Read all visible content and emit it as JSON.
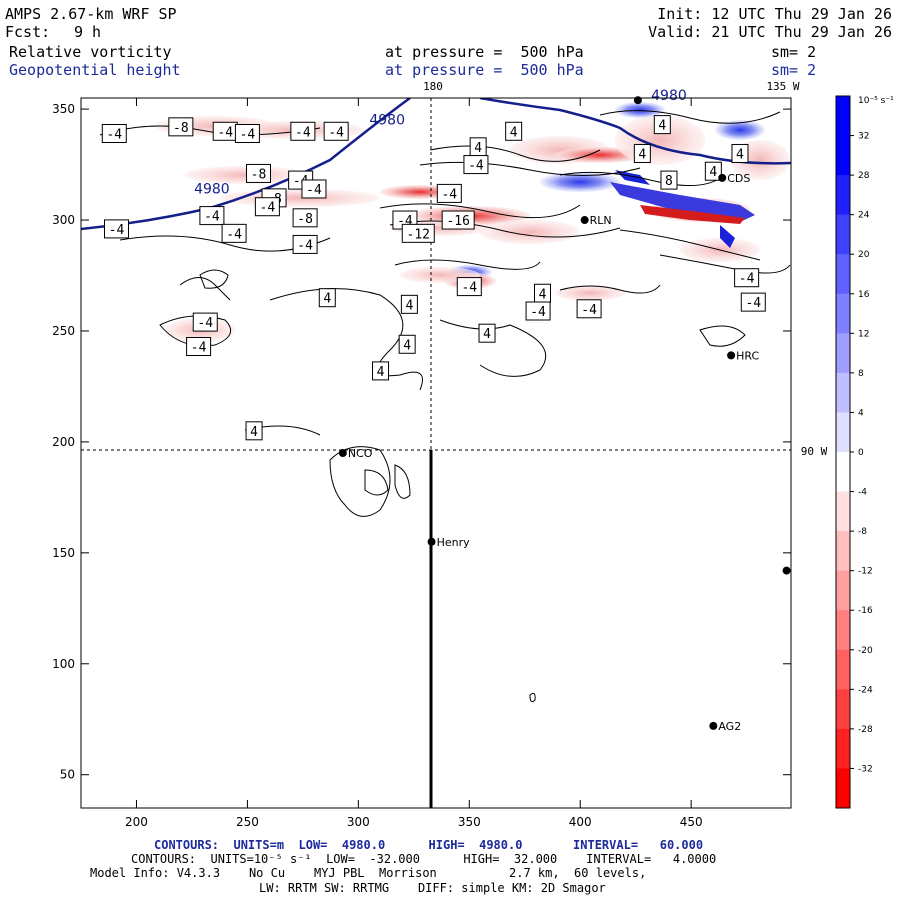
{
  "header": {
    "model": "AMPS 2.67-km WRF SP",
    "fcst_label": "Fcst:",
    "fcst_value": "9 h",
    "init": "Init: 12 UTC Thu 29 Jan 26",
    "valid": "Valid: 21 UTC Thu 29 Jan 26",
    "field1_name": "Relative vorticity",
    "field1_level": "at pressure =  500 hPa",
    "field1_sm": "sm= 2",
    "field2_name": "Geopotential height",
    "field2_level": "at pressure =  500 hPa",
    "field2_sm": "sm= 2"
  },
  "map_labels": {
    "meridian_180": "180",
    "meridian_135w": "135 W",
    "meridian_90w": "90 W"
  },
  "stations": [
    {
      "name": "Henry",
      "x": 333,
      "y": 155
    },
    {
      "name": "NCO",
      "x": 293,
      "y": 195
    },
    {
      "name": "HRC",
      "x": 468,
      "y": 239
    },
    {
      "name": "AG2",
      "x": 460,
      "y": 72
    },
    {
      "name": "RLN",
      "x": 402,
      "y": 300
    },
    {
      "name": "CDS",
      "x": 464,
      "y": 319
    },
    {
      "name": "",
      "x": 426,
      "y": 354
    },
    {
      "name": "",
      "x": 493,
      "y": 142
    }
  ],
  "contour_labels": [
    {
      "text": "-4",
      "x": 190,
      "y": 339
    },
    {
      "text": "-8",
      "x": 220,
      "y": 342
    },
    {
      "text": "-4",
      "x": 240,
      "y": 340
    },
    {
      "text": "-4",
      "x": 250,
      "y": 339
    },
    {
      "text": "-4",
      "x": 275,
      "y": 340
    },
    {
      "text": "-4",
      "x": 290,
      "y": 340
    },
    {
      "text": "4",
      "x": 370,
      "y": 340
    },
    {
      "text": "4",
      "x": 354,
      "y": 333
    },
    {
      "text": "-4",
      "x": 353,
      "y": 325
    },
    {
      "text": "-8",
      "x": 255,
      "y": 321
    },
    {
      "text": "-4",
      "x": 274,
      "y": 318
    },
    {
      "text": "-4",
      "x": 280,
      "y": 314
    },
    {
      "text": "-4",
      "x": 341,
      "y": 312
    },
    {
      "text": "-8",
      "x": 262,
      "y": 310
    },
    {
      "text": "-4",
      "x": 259,
      "y": 306
    },
    {
      "text": "-4",
      "x": 234,
      "y": 302
    },
    {
      "text": "-8",
      "x": 276,
      "y": 301
    },
    {
      "text": "-4",
      "x": 321,
      "y": 300
    },
    {
      "text": "-16",
      "x": 345,
      "y": 300
    },
    {
      "text": "-4",
      "x": 191,
      "y": 296
    },
    {
      "text": "-12",
      "x": 327,
      "y": 294
    },
    {
      "text": "-4",
      "x": 244,
      "y": 294
    },
    {
      "text": "-4",
      "x": 276,
      "y": 289
    },
    {
      "text": "-4",
      "x": 350,
      "y": 270
    },
    {
      "text": "4",
      "x": 383,
      "y": 267
    },
    {
      "text": "4",
      "x": 286,
      "y": 265
    },
    {
      "text": "-4",
      "x": 381,
      "y": 259
    },
    {
      "text": "-4",
      "x": 404,
      "y": 260
    },
    {
      "text": "4",
      "x": 323,
      "y": 262
    },
    {
      "text": "-4",
      "x": 231,
      "y": 254
    },
    {
      "text": "4",
      "x": 358,
      "y": 249
    },
    {
      "text": "-4",
      "x": 228,
      "y": 243
    },
    {
      "text": "4",
      "x": 322,
      "y": 244
    },
    {
      "text": "4",
      "x": 310,
      "y": 232
    },
    {
      "text": "4",
      "x": 253,
      "y": 205
    },
    {
      "text": "-4",
      "x": 475,
      "y": 274
    },
    {
      "text": "-4",
      "x": 478,
      "y": 263
    },
    {
      "text": "4",
      "x": 460,
      "y": 322
    },
    {
      "text": "8",
      "x": 440,
      "y": 318
    },
    {
      "text": "4",
      "x": 437,
      "y": 343
    },
    {
      "text": "4",
      "x": 428,
      "y": 330
    },
    {
      "text": "4",
      "x": 472,
      "y": 330
    }
  ],
  "height_labels": [
    {
      "text": "4980",
      "x": 313,
      "y": 343
    },
    {
      "text": "4980",
      "x": 234,
      "y": 312
    },
    {
      "text": "4980",
      "x": 440,
      "y": 354
    }
  ],
  "axes": {
    "x_ticks": [
      "200",
      "250",
      "300",
      "350",
      "400",
      "450"
    ],
    "y_ticks": [
      "50",
      "100",
      "150",
      "200",
      "250",
      "300",
      "350"
    ],
    "xlim": [
      175,
      495
    ],
    "ylim": [
      35,
      355
    ]
  },
  "colorbar": {
    "unit_label": "10⁻⁵ s⁻¹",
    "ticks": [
      "32",
      "28",
      "24",
      "20",
      "16",
      "12",
      "8",
      "4",
      "0",
      "-4",
      "-8",
      "-12",
      "-16",
      "-20",
      "-24",
      "-28",
      "-32"
    ]
  },
  "footer": {
    "line1": "CONTOURS:  UNITS=m  LOW=  4980.0      HIGH=  4980.0       INTERVAL=   60.000",
    "line2": "CONTOURS:  UNITS=10⁻⁵ s⁻¹  LOW=  -32.000      HIGH=  32.000    INTERVAL=   4.0000",
    "line3": "Model Info: V4.3.3    No Cu    MYJ PBL  Morrison          2.7 km,  60 levels,",
    "line4": "LW: RRTM SW: RRTMG    DIFF: simple KM: 2D Smagor"
  },
  "colors": {
    "title_blue": "#1c2a9a",
    "height_contour": "#141f8c",
    "pos_max": "#0000ee",
    "neg_max": "#ee0000"
  }
}
